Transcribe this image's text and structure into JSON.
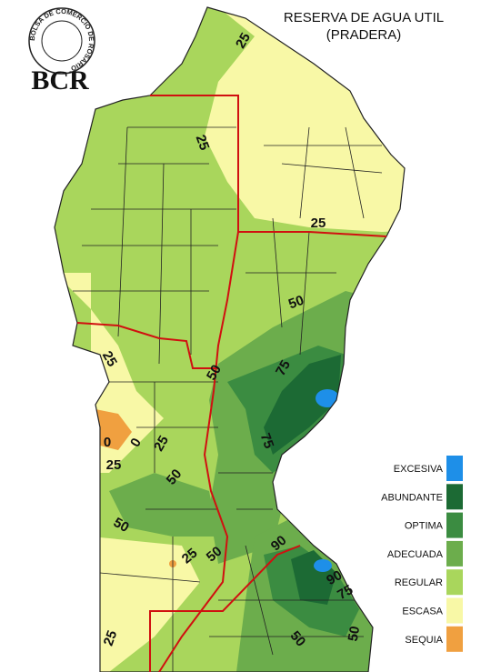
{
  "logo": {
    "text": "BCR",
    "ring_text": "BOLSA DE COMERCIO DE ROSARIO"
  },
  "title": "RESERVA DE AGUA UTIL",
  "subtitle": "(PRADERA)",
  "legend": [
    {
      "label": "EXCESIVA",
      "color": "#1e8fe8"
    },
    {
      "label": "ABUNDANTE",
      "color": "#1c6a34"
    },
    {
      "label": "OPTIMA",
      "color": "#3b8c41"
    },
    {
      "label": "ADECUADA",
      "color": "#6cad4c"
    },
    {
      "label": "REGULAR",
      "color": "#a9d65c"
    },
    {
      "label": "ESCASA",
      "color": "#f8f8a6"
    },
    {
      "label": "SEQUIA",
      "color": "#f0a040"
    }
  ],
  "contour_labels": [
    25,
    25,
    25,
    50,
    25,
    50,
    75,
    75,
    0,
    0,
    25,
    25,
    50,
    50,
    25,
    50,
    90,
    90,
    75,
    50,
    25,
    50
  ]
}
